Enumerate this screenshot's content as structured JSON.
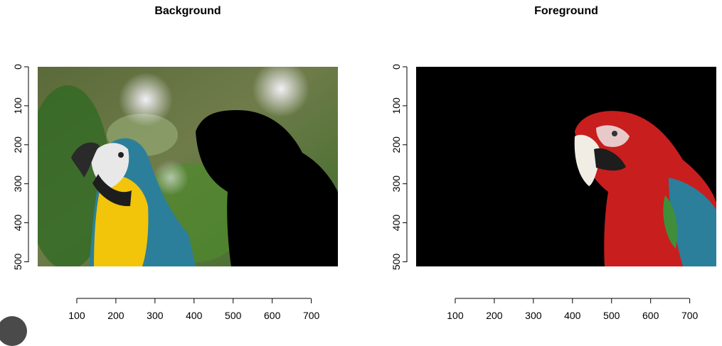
{
  "chart_data": [
    {
      "type": "image",
      "title": "Background",
      "x_ticks": [
        100,
        200,
        300,
        400,
        500,
        600,
        700
      ],
      "y_ticks": [
        0,
        100,
        200,
        300,
        400,
        500
      ],
      "xlim": [
        0,
        768
      ],
      "ylim": [
        512,
        0
      ],
      "content": "blue-and-yellow macaw on green background; right parrot masked black"
    },
    {
      "type": "image",
      "title": "Foreground",
      "x_ticks": [
        100,
        200,
        300,
        400,
        500,
        600,
        700
      ],
      "y_ticks": [
        0,
        100,
        200,
        300,
        400,
        500
      ],
      "xlim": [
        0,
        768
      ],
      "ylim": [
        512,
        0
      ],
      "content": "red-and-green macaw on black background; left region masked black"
    }
  ],
  "colors": {
    "mask": "#000000",
    "green_dark": "#2f5a1e",
    "green_light": "#7fa35a",
    "bokeh": "#d8d6df",
    "macaw_yellow": "#f2c40a",
    "macaw_blue": "#2b7f9a",
    "macaw_red": "#c81e1e"
  }
}
